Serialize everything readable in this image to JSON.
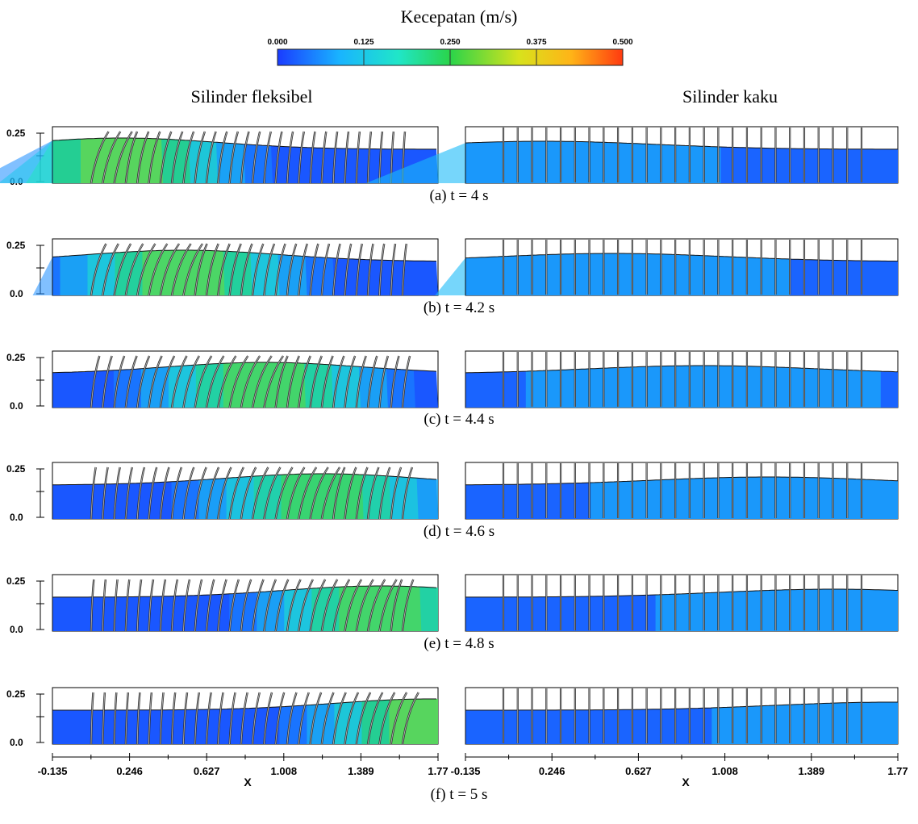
{
  "colorbar": {
    "title": "Kecepatan (m/s)",
    "ticks": [
      "0.000",
      "0.125",
      "0.250",
      "0.375",
      "0.500"
    ],
    "range": [
      0,
      0.5
    ],
    "colors": [
      "#1a3cff",
      "#19b4ff",
      "#20e6c8",
      "#2ad44a",
      "#d8e21c",
      "#ffb417",
      "#ff3a10"
    ]
  },
  "columns": {
    "left": "Silinder fleksibel",
    "right": "Silinder kaku"
  },
  "axes": {
    "y_ticks": [
      "0.25",
      "0.0"
    ],
    "x_ticks": [
      "-0.135",
      "0.246",
      "0.627",
      "1.008",
      "1.389",
      "1.77"
    ],
    "x_label": "X"
  },
  "panels": [
    {
      "caption": "(a) t = 4 s",
      "wave_center": 0.18,
      "bend": 0.42,
      "peak_speed": 0.3
    },
    {
      "caption": "(b) t = 4.2 s",
      "wave_center": 0.34,
      "bend": 0.45,
      "peak_speed": 0.29
    },
    {
      "caption": "(c) t = 4.4 s",
      "wave_center": 0.55,
      "bend": 0.45,
      "peak_speed": 0.28
    },
    {
      "caption": "(d) t = 4.6 s",
      "wave_center": 0.7,
      "bend": 0.42,
      "peak_speed": 0.27
    },
    {
      "caption": "(e) t = 4.8 s",
      "wave_center": 0.85,
      "bend": 0.4,
      "peak_speed": 0.28
    },
    {
      "caption": "(f) t = 5 s",
      "wave_center": 0.98,
      "bend": 0.38,
      "peak_speed": 0.3
    }
  ]
}
